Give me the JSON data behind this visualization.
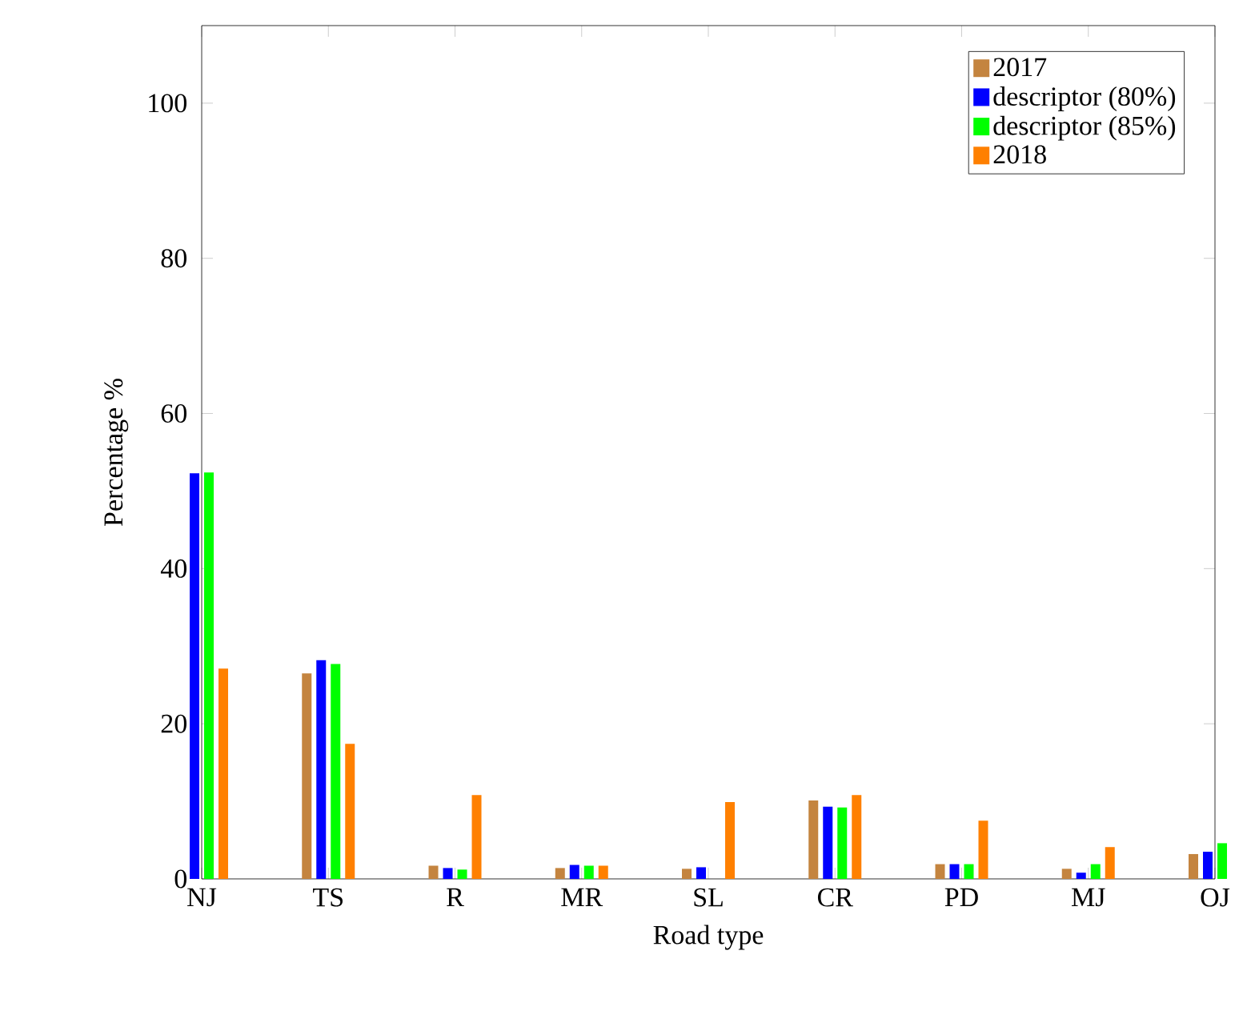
{
  "chart_data": {
    "type": "bar",
    "xlabel": "Road type",
    "ylabel": "Percentage %",
    "categories": [
      "NJ",
      "TS",
      "R",
      "MR",
      "SL",
      "CR",
      "PD",
      "MJ",
      "OJ"
    ],
    "series": [
      {
        "name": "2017",
        "color": "#c4843f",
        "values": [
          null,
          26.5,
          1.7,
          1.4,
          1.3,
          10.1,
          1.9,
          1.3,
          3.2
        ]
      },
      {
        "name": "descriptor (80%)",
        "color": "#0000ff",
        "values": [
          52.3,
          28.2,
          1.4,
          1.8,
          1.5,
          9.3,
          1.9,
          0.8,
          3.5
        ]
      },
      {
        "name": "descriptor (85%)",
        "color": "#00ff00",
        "values": [
          52.4,
          27.7,
          1.2,
          1.7,
          0,
          9.2,
          1.9,
          1.9,
          4.6
        ]
      },
      {
        "name": "2018",
        "color": "#ff8000",
        "values": [
          27.1,
          17.4,
          10.8,
          1.7,
          9.9,
          10.8,
          7.5,
          4.1,
          null
        ]
      }
    ],
    "ylim": [
      0,
      110
    ],
    "yticks": [
      0,
      20,
      40,
      60,
      80,
      100
    ],
    "grid": false,
    "legend": "top right"
  }
}
